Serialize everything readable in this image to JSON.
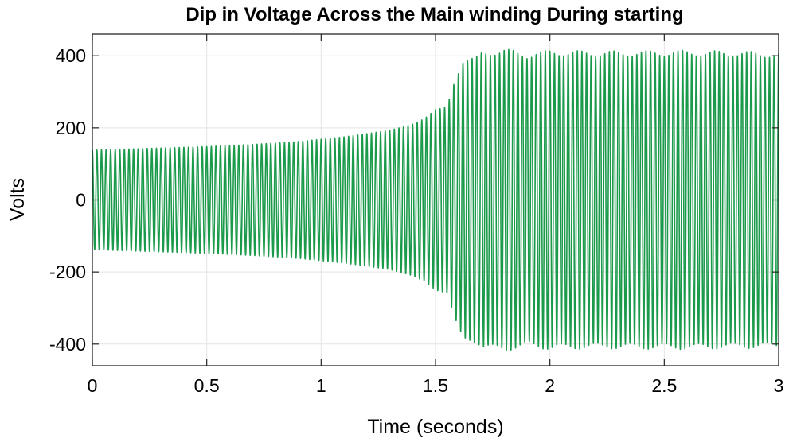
{
  "chart_data": {
    "type": "line",
    "title": "Dip in Voltage Across the Main winding During starting",
    "xlabel": "Time (seconds)",
    "ylabel": "Volts",
    "xlim": [
      0,
      3
    ],
    "ylim": [
      -460,
      460
    ],
    "xticks": [
      0,
      0.5,
      1,
      1.5,
      2,
      2.5,
      3
    ],
    "xtick_labels": [
      "0",
      "0.5",
      "1",
      "1.5",
      "2",
      "2.5",
      "3"
    ],
    "yticks": [
      -400,
      -200,
      0,
      200,
      400
    ],
    "ytick_labels": [
      "-400",
      "-200",
      "0",
      "200",
      "400"
    ],
    "grid": true,
    "legend": "none",
    "series": [
      {
        "color": "#1a9a4a",
        "frequency_hz": 50,
        "envelope_amplitude": {
          "t": [
            0,
            0.1,
            0.3,
            0.5,
            0.7,
            0.9,
            1.1,
            1.3,
            1.4,
            1.45,
            1.5,
            1.55,
            1.58,
            1.62,
            1.7,
            1.8,
            1.9,
            2.0,
            2.2,
            2.4,
            2.6,
            2.8,
            3.0
          ],
          "v": [
            138,
            140,
            144,
            148,
            154,
            162,
            175,
            193,
            210,
            225,
            250,
            258,
            320,
            380,
            405,
            412,
            400,
            408,
            405,
            406,
            407,
            405,
            402
          ]
        },
        "ripple_amplitude": 8,
        "ripple_frequency_hz": 6.7
      }
    ]
  }
}
